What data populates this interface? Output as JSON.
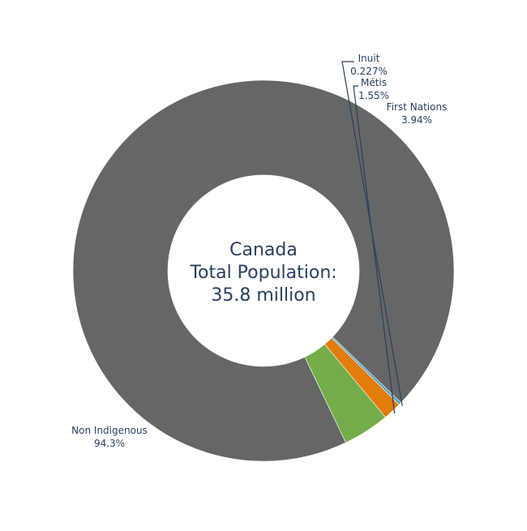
{
  "chart_data": {
    "type": "pie",
    "hole": true,
    "center_text": [
      "Canada",
      "Total Population:",
      "35.8 million"
    ],
    "slices": [
      {
        "label": "Non Indigenous",
        "value": 94.3,
        "value_text": "94.3%",
        "color": "#666666"
      },
      {
        "label": "Inuit",
        "value": 0.227,
        "value_text": "0.227%",
        "color": "#4ba3c3"
      },
      {
        "label": "Métis",
        "value": 1.55,
        "value_text": "1.55%",
        "color": "#e37c08"
      },
      {
        "label": "First Nations",
        "value": 3.94,
        "value_text": "3.94%",
        "color": "#72ad4a"
      }
    ]
  }
}
